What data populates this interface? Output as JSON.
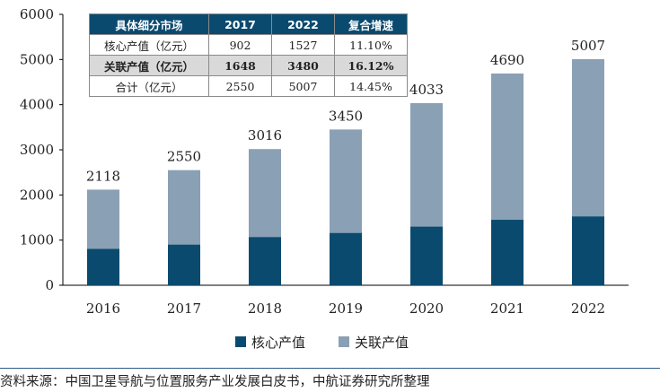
{
  "chart_data": {
    "type": "bar",
    "stacked": true,
    "categories": [
      "2016",
      "2017",
      "2018",
      "2019",
      "2020",
      "2021",
      "2022"
    ],
    "series": [
      {
        "name": "核心产值",
        "values": [
          810,
          902,
          1070,
          1160,
          1300,
          1450,
          1527
        ],
        "color": "#0b4a6f"
      },
      {
        "name": "关联产值",
        "values": [
          1308,
          1648,
          1946,
          2290,
          2733,
          3240,
          3480
        ],
        "color": "#8aa0b5"
      }
    ],
    "totals": [
      "2118",
      "2550",
      "3016",
      "3450",
      "4033",
      "4690",
      "5007"
    ],
    "ylim": [
      0,
      6000
    ],
    "yticks": [
      "0",
      "1000",
      "2000",
      "3000",
      "4000",
      "5000",
      "6000"
    ],
    "legend_position": "bottom-center"
  },
  "table": {
    "headers": [
      "具体细分市场",
      "2017",
      "2022",
      "复合增速"
    ],
    "rows": [
      {
        "cells": [
          "核心产值（亿元）",
          "902",
          "1527",
          "11.10%"
        ],
        "highlight": false
      },
      {
        "cells": [
          "关联产值（亿元）",
          "1648",
          "3480",
          "16.12%"
        ],
        "highlight": true
      },
      {
        "cells": [
          "合计（亿元）",
          "2550",
          "5007",
          "14.45%"
        ],
        "highlight": false
      }
    ]
  },
  "source": "资料来源：中国卫星导航与位置服务产业发展白皮书，中航证券研究所整理"
}
